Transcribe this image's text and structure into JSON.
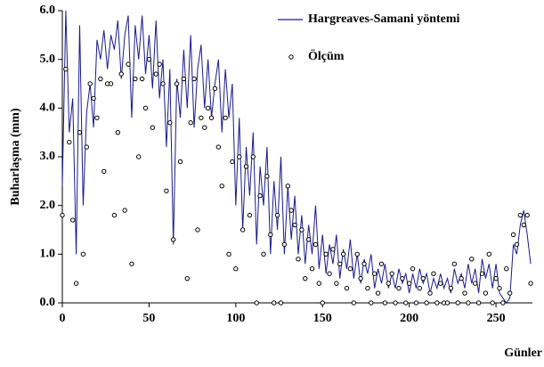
{
  "chart_data": {
    "type": "line_scatter",
    "y_label": "Buharlaşma  (mm)",
    "x_label": "Günler",
    "xlim": [
      0,
      271
    ],
    "xticks": [
      0,
      50,
      100,
      150,
      200,
      250
    ],
    "ylim": [
      0,
      6
    ],
    "yticks": [
      {
        "value": 0,
        "label": "0.0"
      },
      {
        "value": 1,
        "label": "1.0"
      },
      {
        "value": 2,
        "label": "2.0"
      },
      {
        "value": 3,
        "label": "3.0"
      },
      {
        "value": 4,
        "label": "4.0"
      },
      {
        "value": 5,
        "label": "5.0"
      },
      {
        "value": 6,
        "label": "6.0"
      }
    ],
    "x": [
      0,
      2,
      4,
      6,
      8,
      10,
      12,
      14,
      16,
      18,
      20,
      22,
      24,
      26,
      28,
      30,
      32,
      34,
      36,
      38,
      40,
      42,
      44,
      46,
      48,
      50,
      52,
      54,
      56,
      58,
      60,
      62,
      64,
      66,
      68,
      70,
      72,
      74,
      76,
      78,
      80,
      82,
      84,
      86,
      88,
      90,
      92,
      94,
      96,
      98,
      100,
      102,
      104,
      106,
      108,
      110,
      112,
      114,
      116,
      118,
      120,
      122,
      124,
      126,
      128,
      130,
      132,
      134,
      136,
      138,
      140,
      142,
      144,
      146,
      148,
      150,
      152,
      154,
      156,
      158,
      160,
      162,
      164,
      166,
      168,
      170,
      172,
      174,
      176,
      178,
      180,
      182,
      184,
      186,
      188,
      190,
      192,
      194,
      196,
      198,
      200,
      202,
      204,
      206,
      208,
      210,
      212,
      214,
      216,
      218,
      220,
      222,
      224,
      226,
      228,
      230,
      232,
      234,
      236,
      238,
      240,
      242,
      244,
      246,
      248,
      250,
      252,
      254,
      256,
      258,
      260,
      262,
      264,
      266,
      268,
      270
    ],
    "series": [
      {
        "name": "Hargreaves-Samani yöntemi",
        "kind": "line",
        "color": "#1a1a8c",
        "values": [
          2.4,
          6.0,
          3.5,
          4.2,
          1.0,
          5.7,
          2.0,
          3.9,
          4.5,
          3.6,
          5.4,
          5.0,
          5.6,
          4.8,
          5.5,
          5.2,
          5.8,
          4.6,
          5.5,
          5.9,
          3.8,
          5.7,
          5.0,
          5.9,
          4.7,
          5.5,
          4.4,
          5.8,
          4.2,
          5.0,
          3.2,
          4.8,
          1.2,
          4.6,
          3.8,
          5.2,
          4.0,
          5.5,
          3.6,
          4.8,
          5.3,
          4.0,
          5.0,
          3.8,
          4.5,
          5.0,
          3.5,
          4.8,
          3.8,
          4.5,
          2.0,
          3.8,
          1.5,
          3.2,
          2.2,
          3.5,
          1.2,
          2.8,
          2.0,
          3.2,
          1.0,
          2.5,
          1.5,
          3.0,
          1.0,
          2.4,
          1.3,
          2.2,
          1.0,
          1.8,
          0.8,
          1.6,
          1.0,
          2.0,
          0.7,
          1.4,
          0.6,
          1.2,
          0.8,
          1.4,
          0.5,
          1.1,
          0.7,
          1.3,
          0.5,
          1.0,
          0.4,
          0.9,
          0.6,
          1.0,
          0.3,
          0.7,
          0.4,
          0.8,
          0.3,
          0.6,
          0.3,
          0.7,
          0.4,
          0.6,
          0.2,
          0.6,
          0.3,
          0.7,
          0.4,
          0.6,
          0.2,
          0.5,
          0.3,
          0.6,
          0.3,
          0.5,
          0.2,
          0.7,
          0.4,
          0.6,
          0.3,
          0.8,
          0.4,
          0.7,
          0.2,
          0.9,
          0.5,
          0.8,
          0.3,
          0.8,
          0.2,
          0.1,
          0.0,
          0.1,
          1.2,
          1.0,
          1.6,
          1.9,
          1.4,
          0.8
        ]
      },
      {
        "name": "Ölçüm",
        "kind": "scatter",
        "color": "#000000",
        "values": [
          1.8,
          4.8,
          3.3,
          1.7,
          0.4,
          3.5,
          1.0,
          3.2,
          4.5,
          4.2,
          3.8,
          4.6,
          2.7,
          4.5,
          4.5,
          1.8,
          3.5,
          4.7,
          1.9,
          4.9,
          0.8,
          4.6,
          3.0,
          4.6,
          4.0,
          5.0,
          3.6,
          4.7,
          4.9,
          4.5,
          2.3,
          3.7,
          1.3,
          4.5,
          2.9,
          4.6,
          0.5,
          3.7,
          4.6,
          1.5,
          3.8,
          3.6,
          4.0,
          3.8,
          4.4,
          3.2,
          2.4,
          3.8,
          1.0,
          2.9,
          0.7,
          3.0,
          1.5,
          2.8,
          1.8,
          3.0,
          0.0,
          2.2,
          1.0,
          2.6,
          1.4,
          0.0,
          1.8,
          0.0,
          1.2,
          2.4,
          1.9,
          1.6,
          0.9,
          1.5,
          0.5,
          1.3,
          0.7,
          1.2,
          0.4,
          0.0,
          1.0,
          0.6,
          1.1,
          0.4,
          0.8,
          1.0,
          0.3,
          0.7,
          0.0,
          1.0,
          0.5,
          0.8,
          0.3,
          0.0,
          0.6,
          0.2,
          0.8,
          0.0,
          0.4,
          0.6,
          0.0,
          0.3,
          0.5,
          0.0,
          0.4,
          0.7,
          0.0,
          0.3,
          0.5,
          0.0,
          0.2,
          0.6,
          0.0,
          0.4,
          0.0,
          0.0,
          0.3,
          0.8,
          0.0,
          0.5,
          0.2,
          0.0,
          0.9,
          0.4,
          0.0,
          0.6,
          0.2,
          1.0,
          0.0,
          0.5,
          0.3,
          0.0,
          0.7,
          0.2,
          1.4,
          1.2,
          1.8,
          1.6,
          1.8,
          0.4
        ]
      }
    ]
  }
}
